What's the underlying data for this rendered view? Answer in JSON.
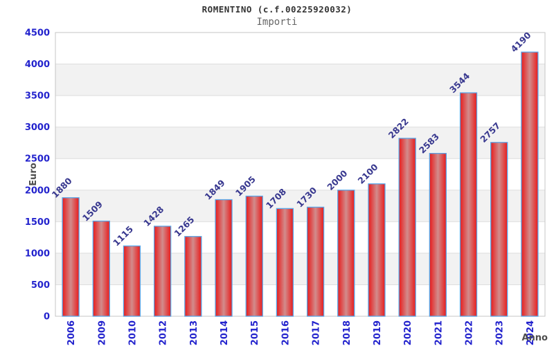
{
  "header": {
    "title": "ROMENTINO (c.f.00225920032)",
    "subtitle": "Importi"
  },
  "chart_data": {
    "type": "bar",
    "title": "ROMENTINO (c.f.00225920032)",
    "subtitle": "Importi",
    "categories": [
      "2006",
      "2009",
      "2010",
      "2012",
      "2013",
      "2014",
      "2015",
      "2016",
      "2017",
      "2018",
      "2019",
      "2020",
      "2021",
      "2022",
      "2023",
      "2024"
    ],
    "values": [
      1880,
      1509,
      1115,
      1428,
      1265,
      1849,
      1905,
      1708,
      1730,
      2000,
      2100,
      2822,
      2583,
      3544,
      2757,
      4190
    ],
    "xlabel": "Anno",
    "ylabel": "Euro",
    "ylim": [
      0,
      4500
    ],
    "ytick_step": 500,
    "ytick_labels": [
      "0",
      "500",
      "1000",
      "1500",
      "2000",
      "2500",
      "3000",
      "3500",
      "4000",
      "4500"
    ],
    "legend": "none",
    "grid": "alternating-horizontal-bands",
    "colors": {
      "bar_fill_edge": "#e81b1b",
      "bar_fill_center": "#d28c8c",
      "bar_border": "#58a4e6",
      "tick_text": "#2323cd",
      "value_label_text": "#38388f",
      "band_gray": "#f2f2f2",
      "grid_line": "#dedede",
      "plot_border": "#c4c4c4",
      "title_text": "#333333",
      "subtitle_text": "#666666",
      "axis_title_text": "#4d4d4d"
    }
  }
}
